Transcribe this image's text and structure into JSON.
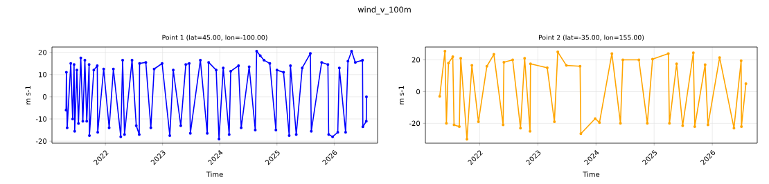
{
  "chart_data": [
    {
      "type": "line",
      "title": "wind_v_100m",
      "subtitle": "Point 1 (lat=45.00, lon=-100.00)",
      "xlabel": "Time",
      "ylabel": "m s-1",
      "xlim": [
        "2021-01-25",
        "2026-10-05"
      ],
      "ylim": [
        -20.9,
        22.4
      ],
      "xticks": [
        "2022",
        "2023",
        "2024",
        "2025",
        "2026"
      ],
      "yticks": [
        -20,
        -10,
        0,
        10,
        20
      ],
      "grid": true,
      "marker": "circle",
      "line_style": "solid",
      "x": [
        "2021-04-25",
        "2021-04-27",
        "2021-05-02",
        "2021-05-25",
        "2021-06-06",
        "2021-06-15",
        "2021-06-19",
        "2021-07-03",
        "2021-07-13",
        "2021-07-28",
        "2021-08-10",
        "2021-08-23",
        "2021-09-04",
        "2021-09-19",
        "2021-09-21",
        "2021-10-19",
        "2021-11-10",
        "2021-11-13",
        "2021-12-21",
        "2022-01-25",
        "2022-02-21",
        "2022-04-09",
        "2022-04-21",
        "2022-05-03",
        "2022-06-20",
        "2022-07-17",
        "2022-08-05",
        "2022-08-07",
        "2022-09-16",
        "2022-10-18",
        "2022-11-08",
        "2022-12-29",
        "2023-02-16",
        "2023-03-10",
        "2023-04-27",
        "2023-05-29",
        "2023-06-20",
        "2023-06-27",
        "2023-08-30",
        "2023-10-13",
        "2023-10-22",
        "2023-12-09",
        "2023-12-27",
        "2024-01-23",
        "2024-03-01",
        "2024-03-11",
        "2024-04-30",
        "2024-05-17",
        "2024-07-07",
        "2024-08-15",
        "2024-08-24",
        "2024-09-16",
        "2024-10-10",
        "2024-11-16",
        "2024-12-25",
        "2025-01-01",
        "2025-02-12",
        "2025-03-20",
        "2025-03-28",
        "2025-05-04",
        "2025-06-11",
        "2025-08-02",
        "2025-08-08",
        "2025-10-13",
        "2025-11-22",
        "2025-11-27",
        "2025-12-22",
        "2026-01-24",
        "2026-02-03",
        "2026-03-15",
        "2026-03-30",
        "2026-04-22",
        "2026-05-16",
        "2026-07-01",
        "2026-07-03",
        "2026-07-25",
        "2026-07-26"
      ],
      "series": [
        {
          "color": "#0000ff",
          "values": [
            -6,
            11,
            -14,
            15,
            -10,
            14.5,
            -15.5,
            12,
            -12,
            17.5,
            -11,
            16.5,
            -11,
            14.5,
            -17.5,
            12,
            14,
            -16,
            12.5,
            -14,
            12.5,
            -18,
            16.5,
            -17,
            16.5,
            -13,
            -17,
            15,
            15.5,
            -14,
            12.5,
            15,
            -17.5,
            12,
            -13,
            14.5,
            15,
            -16.5,
            16.5,
            -16.5,
            15.5,
            12,
            -19,
            13,
            -17,
            11.5,
            14,
            -14,
            13.5,
            -15,
            20.5,
            18.5,
            16.5,
            15,
            -15,
            12,
            11,
            -17.5,
            14,
            -17,
            13,
            19.5,
            -15.5,
            15.5,
            14.5,
            -17,
            -18,
            -16,
            13,
            -16,
            16,
            20.5,
            15.5,
            16.5,
            -13.5,
            -11,
            0
          ]
        }
      ]
    },
    {
      "type": "line",
      "subtitle": "Point 2 (lat=-35.00, lon=155.00)",
      "xlabel": "Time",
      "ylabel": "m s-1",
      "xlim": [
        "2021-01-25",
        "2026-10-10"
      ],
      "ylim": [
        -32.5,
        28.1
      ],
      "xticks": [
        "2022",
        "2023",
        "2024",
        "2025",
        "2026"
      ],
      "yticks": [
        -20,
        0,
        20
      ],
      "grid": true,
      "marker": "circle",
      "line_style": "solid",
      "x": [
        "2021-04-25",
        "2021-05-28",
        "2021-06-06",
        "2021-06-19",
        "2021-07-16",
        "2021-07-24",
        "2021-08-26",
        "2021-09-04",
        "2021-10-13",
        "2021-11-13",
        "2021-12-24",
        "2022-02-15",
        "2022-03-31",
        "2022-05-28",
        "2022-06-02",
        "2022-07-27",
        "2022-09-14",
        "2022-10-10",
        "2022-11-13",
        "2022-11-16",
        "2023-03-01",
        "2023-04-15",
        "2023-05-06",
        "2023-06-29",
        "2023-09-23",
        "2023-09-28",
        "2023-12-27",
        "2024-01-23",
        "2024-04-10",
        "2024-06-03",
        "2024-06-18",
        "2024-09-27",
        "2024-11-19",
        "2024-12-22",
        "2025-03-31",
        "2025-04-07",
        "2025-05-22",
        "2025-06-29",
        "2025-09-04",
        "2025-09-13",
        "2025-11-17",
        "2025-12-05",
        "2026-02-16",
        "2026-05-17",
        "2026-07-01",
        "2026-07-03",
        "2026-07-31"
      ],
      "series": [
        {
          "color": "#ffa500",
          "values": [
            -3,
            25.5,
            -20,
            18,
            22,
            -21,
            -22,
            21,
            -30,
            16.5,
            -19,
            16,
            23.5,
            -21,
            18.5,
            20,
            -23,
            21,
            -25,
            17.5,
            15,
            -19,
            25,
            16.5,
            16,
            -26.5,
            -17,
            -19.5,
            24,
            -20,
            20,
            20,
            -20,
            20.5,
            24,
            -20,
            17.5,
            -21.5,
            24.5,
            -22,
            17,
            -21,
            21.5,
            -23,
            19.5,
            -22,
            5
          ]
        }
      ]
    }
  ]
}
